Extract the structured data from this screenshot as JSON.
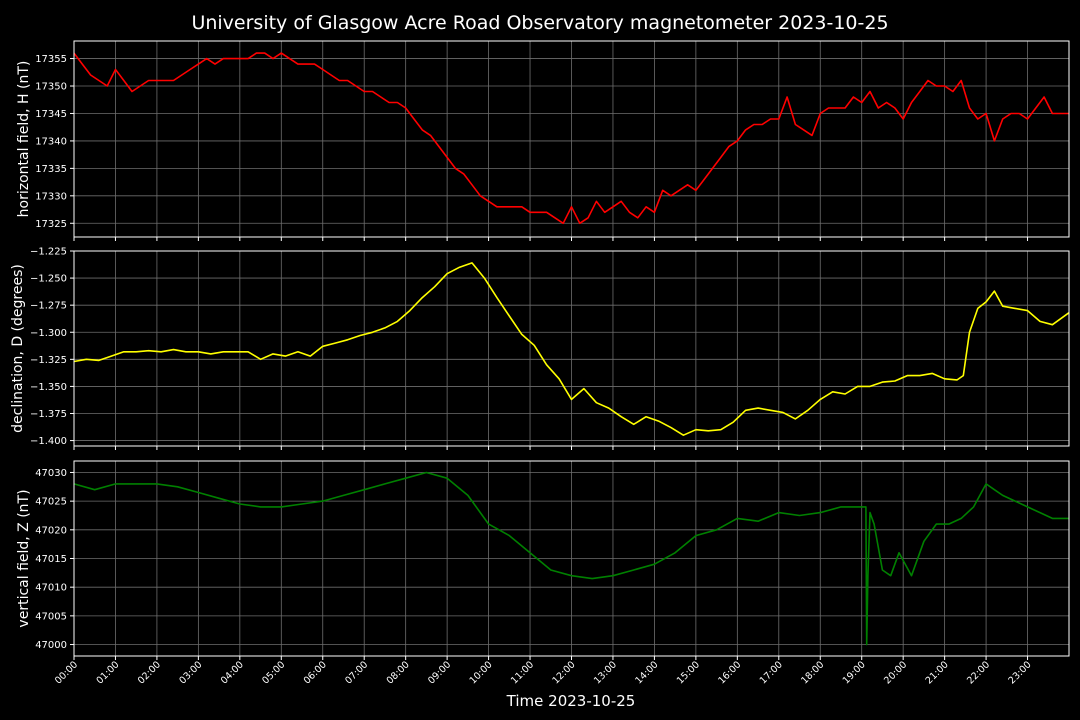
{
  "title": "University of Glasgow Acre Road Observatory magnetometer 2023-10-25",
  "xlabel": "Time 2023-10-25",
  "x_ticks": [
    "00:00",
    "01:00",
    "02:00",
    "03:00",
    "04:00",
    "05:00",
    "06:00",
    "07:00",
    "08:00",
    "09:00",
    "10:00",
    "11:00",
    "12:00",
    "13:00",
    "14:00",
    "15:00",
    "16:00",
    "17:00",
    "18:00",
    "19:00",
    "20:00",
    "21:00",
    "22:00",
    "23:00"
  ],
  "chart_data": [
    {
      "type": "line",
      "ylabel": "horizontal field, H (nT)",
      "color": "#ff0000",
      "xlim_hours": [
        0,
        24
      ],
      "ylim": [
        17322.5,
        17358.2
      ],
      "yticks": [
        "17325",
        "17330",
        "17335",
        "17340",
        "17345",
        "17350",
        "17355"
      ],
      "ytick_values": [
        17325,
        17330,
        17335,
        17340,
        17345,
        17350,
        17355
      ],
      "grid": true,
      "series": [
        {
          "x_hours": [
            0,
            0.2,
            0.4,
            0.6,
            0.8,
            1.0,
            1.2,
            1.4,
            1.6,
            1.8,
            2.0,
            2.2,
            2.4,
            2.6,
            2.8,
            3.0,
            3.2,
            3.4,
            3.6,
            3.8,
            4.0,
            4.2,
            4.4,
            4.6,
            4.8,
            5.0,
            5.2,
            5.4,
            5.6,
            5.8,
            6.0,
            6.2,
            6.4,
            6.6,
            6.8,
            7.0,
            7.2,
            7.4,
            7.6,
            7.8,
            8.0,
            8.2,
            8.4,
            8.6,
            8.8,
            9.0,
            9.2,
            9.4,
            9.6,
            9.8,
            10.0,
            10.2,
            10.4,
            10.6,
            10.8,
            11.0,
            11.2,
            11.4,
            11.6,
            11.8,
            12.0,
            12.2,
            12.4,
            12.6,
            12.8,
            13.0,
            13.2,
            13.4,
            13.6,
            13.8,
            14.0,
            14.2,
            14.4,
            14.6,
            14.8,
            15.0,
            15.2,
            15.4,
            15.6,
            15.8,
            16.0,
            16.2,
            16.4,
            16.6,
            16.8,
            17.0,
            17.2,
            17.4,
            17.6,
            17.8,
            18.0,
            18.2,
            18.4,
            18.6,
            18.8,
            19.0,
            19.2,
            19.4,
            19.6,
            19.8,
            20.0,
            20.2,
            20.4,
            20.6,
            20.8,
            21.0,
            21.2,
            21.4,
            21.6,
            21.8,
            22.0,
            22.2,
            22.4,
            22.6,
            22.8,
            23.0,
            23.2,
            23.4,
            23.6,
            23.8,
            24.0
          ],
          "y": [
            17356,
            17354,
            17352,
            17351,
            17350,
            17353,
            17351,
            17349,
            17350,
            17351,
            17351,
            17351,
            17351,
            17352,
            17353,
            17354,
            17355,
            17354,
            17355,
            17355,
            17355,
            17355,
            17356,
            17356,
            17355,
            17356,
            17355,
            17354,
            17354,
            17354,
            17353,
            17352,
            17351,
            17351,
            17350,
            17349,
            17349,
            17348,
            17347,
            17347,
            17346,
            17344,
            17342,
            17341,
            17339,
            17337,
            17335,
            17334,
            17332,
            17330,
            17329,
            17328,
            17328,
            17328,
            17328,
            17327,
            17327,
            17327,
            17326,
            17325,
            17328,
            17325,
            17326,
            17329,
            17327,
            17328,
            17329,
            17327,
            17326,
            17328,
            17327,
            17331,
            17330,
            17331,
            17332,
            17331,
            17333,
            17335,
            17337,
            17339,
            17340,
            17342,
            17343,
            17343,
            17344,
            17344,
            17348,
            17343,
            17342,
            17341,
            17345,
            17346,
            17346,
            17346,
            17348,
            17347,
            17349,
            17346,
            17347,
            17346,
            17344,
            17347,
            17349,
            17351,
            17350,
            17350,
            17349,
            17351,
            17346,
            17344,
            17345,
            17340,
            17344,
            17345,
            17345,
            17344,
            17346,
            17348,
            17345,
            17345,
            17345
          ]
        }
      ]
    },
    {
      "type": "line",
      "ylabel": "declination, D (degrees)",
      "color": "#ffff00",
      "xlim_hours": [
        0,
        24
      ],
      "ylim": [
        -1.405,
        -1.225
      ],
      "yticks": [
        "−1.225",
        "−1.250",
        "−1.275",
        "−1.300",
        "−1.325",
        "−1.350",
        "−1.375",
        "−1.400"
      ],
      "ytick_values": [
        -1.225,
        -1.25,
        -1.275,
        -1.3,
        -1.325,
        -1.35,
        -1.375,
        -1.4
      ],
      "grid": true,
      "series": [
        {
          "x_hours": [
            0,
            0.3,
            0.6,
            0.9,
            1.2,
            1.5,
            1.8,
            2.1,
            2.4,
            2.7,
            3.0,
            3.3,
            3.6,
            3.9,
            4.2,
            4.5,
            4.8,
            5.1,
            5.4,
            5.7,
            6.0,
            6.3,
            6.6,
            6.9,
            7.2,
            7.5,
            7.8,
            8.1,
            8.4,
            8.7,
            9.0,
            9.3,
            9.6,
            9.9,
            10.2,
            10.5,
            10.8,
            11.1,
            11.4,
            11.7,
            12.0,
            12.3,
            12.6,
            12.9,
            13.2,
            13.5,
            13.8,
            14.1,
            14.4,
            14.7,
            15.0,
            15.3,
            15.6,
            15.9,
            16.2,
            16.5,
            16.8,
            17.1,
            17.4,
            17.7,
            18.0,
            18.3,
            18.6,
            18.9,
            19.2,
            19.5,
            19.8,
            20.1,
            20.4,
            20.7,
            21.0,
            21.3,
            21.45,
            21.6,
            21.8,
            22.0,
            22.2,
            22.4,
            22.7,
            23.0,
            23.3,
            23.6,
            24.0
          ],
          "y": [
            -1.327,
            -1.325,
            -1.326,
            -1.322,
            -1.318,
            -1.318,
            -1.317,
            -1.318,
            -1.316,
            -1.318,
            -1.318,
            -1.32,
            -1.318,
            -1.318,
            -1.318,
            -1.325,
            -1.32,
            -1.322,
            -1.318,
            -1.322,
            -1.313,
            -1.31,
            -1.307,
            -1.303,
            -1.3,
            -1.296,
            -1.29,
            -1.28,
            -1.268,
            -1.258,
            -1.246,
            -1.24,
            -1.236,
            -1.25,
            -1.268,
            -1.285,
            -1.302,
            -1.312,
            -1.33,
            -1.343,
            -1.362,
            -1.352,
            -1.365,
            -1.37,
            -1.378,
            -1.385,
            -1.378,
            -1.382,
            -1.388,
            -1.395,
            -1.39,
            -1.391,
            -1.39,
            -1.383,
            -1.372,
            -1.37,
            -1.372,
            -1.374,
            -1.38,
            -1.372,
            -1.362,
            -1.355,
            -1.357,
            -1.35,
            -1.35,
            -1.346,
            -1.345,
            -1.34,
            -1.34,
            -1.338,
            -1.343,
            -1.344,
            -1.34,
            -1.3,
            -1.278,
            -1.272,
            -1.262,
            -1.276,
            -1.278,
            -1.28,
            -1.29,
            -1.293,
            -1.282
          ]
        }
      ]
    },
    {
      "type": "line",
      "ylabel": "vertical field, Z (nT)",
      "color": "#008000",
      "xlim_hours": [
        0,
        24
      ],
      "ylim": [
        46998,
        47032
      ],
      "yticks": [
        "47000",
        "47005",
        "47010",
        "47015",
        "47020",
        "47025",
        "47030"
      ],
      "ytick_values": [
        47000,
        47005,
        47010,
        47015,
        47020,
        47025,
        47030
      ],
      "grid": true,
      "series": [
        {
          "x_hours": [
            0,
            0.5,
            1.0,
            1.5,
            2.0,
            2.5,
            3.0,
            3.5,
            4.0,
            4.5,
            5.0,
            5.5,
            6.0,
            6.5,
            7.0,
            7.5,
            8.0,
            8.5,
            9.0,
            9.5,
            10.0,
            10.5,
            11.0,
            11.5,
            12.0,
            12.5,
            13.0,
            13.5,
            14.0,
            14.5,
            15.0,
            15.5,
            16.0,
            16.5,
            17.0,
            17.5,
            18.0,
            18.5,
            18.9,
            19.1,
            19.12,
            19.15,
            19.2,
            19.3,
            19.5,
            19.7,
            19.9,
            20.2,
            20.5,
            20.8,
            21.1,
            21.4,
            21.7,
            22.0,
            22.2,
            22.4,
            22.7,
            23.0,
            23.3,
            23.6,
            24.0
          ],
          "y": [
            47028,
            47027,
            47028,
            47028,
            47028,
            47027.5,
            47026.5,
            47025.5,
            47024.5,
            47024,
            47024,
            47024.5,
            47025,
            47026,
            47027,
            47028,
            47029,
            47030,
            47029,
            47026,
            47021,
            47019,
            47016,
            47013,
            47012,
            47011.5,
            47012,
            47013,
            47014,
            47016,
            47019,
            47020,
            47022,
            47021.5,
            47023,
            47022.5,
            47023,
            47024,
            47024,
            47024,
            47000,
            47012,
            47023,
            47021,
            47013,
            47012,
            47016,
            47012,
            47018,
            47021,
            47021,
            47022,
            47024,
            47028,
            47027,
            47026,
            47025,
            47024,
            47023,
            47022,
            47022
          ]
        }
      ]
    }
  ]
}
